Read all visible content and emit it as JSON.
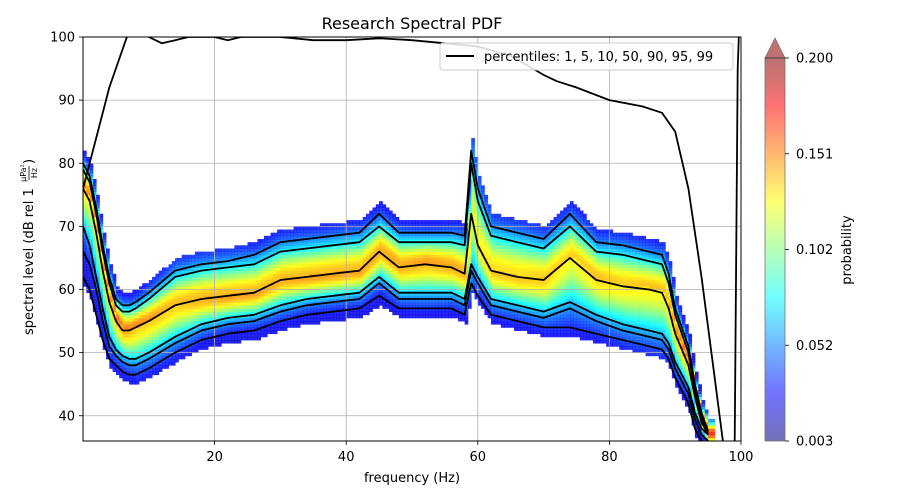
{
  "chart_data": {
    "type": "heatmap",
    "title": "Research Spectral PDF",
    "xlabel": "frequency (Hz)",
    "ylabel_main": "spectral level (dB rel 1",
    "ylabel_frac_num": "μPa²",
    "ylabel_frac_den": "Hz",
    "ylabel_close": ")",
    "xlim": [
      0,
      100
    ],
    "ylim": [
      36,
      100
    ],
    "xticks": [
      20,
      40,
      60,
      80,
      100
    ],
    "yticks": [
      40,
      50,
      60,
      70,
      80,
      90,
      100
    ],
    "grid": true,
    "legend": {
      "position": "top-right",
      "label": "percentiles: 1, 5, 10, 50, 90, 95, 99"
    },
    "colorbar": {
      "label": "probability",
      "range": [
        0.003,
        0.2
      ],
      "ticks": [
        "0.003",
        "0.052",
        "0.102",
        "0.151",
        "0.200"
      ],
      "extend": "max",
      "colormap": [
        "#00007f",
        "#0000ff",
        "#007fff",
        "#00ffff",
        "#7fff7f",
        "#ffff00",
        "#ff7f00",
        "#ff0000",
        "#7f0000"
      ]
    },
    "series": [
      {
        "percentile": 1,
        "x": [
          0,
          1,
          2,
          3,
          4,
          5,
          6,
          7,
          8,
          10,
          14,
          18,
          22,
          26,
          30,
          34,
          38,
          42,
          45,
          48,
          52,
          56,
          58,
          59,
          60,
          62,
          66,
          70,
          74,
          78,
          82,
          86,
          88,
          89,
          90,
          92,
          93,
          94,
          95
        ],
        "y": [
          62,
          60,
          56,
          52,
          49,
          48,
          47,
          46.5,
          46.5,
          47.5,
          50,
          52,
          53,
          53.5,
          55,
          56,
          56.5,
          57,
          59,
          57,
          57,
          57,
          56,
          61,
          59,
          56,
          55,
          54,
          54,
          53,
          52,
          51,
          50.5,
          49,
          46,
          42,
          38,
          36,
          35
        ]
      },
      {
        "percentile": 5,
        "x": [
          0,
          1,
          2,
          3,
          4,
          5,
          6,
          7,
          8,
          10,
          14,
          18,
          22,
          26,
          30,
          34,
          38,
          42,
          45,
          48,
          52,
          56,
          58,
          59,
          60,
          62,
          66,
          70,
          74,
          78,
          82,
          86,
          88,
          89,
          90,
          92,
          93,
          94,
          95
        ],
        "y": [
          66,
          64,
          60,
          55,
          51,
          49.5,
          48.5,
          48,
          48,
          49,
          51.5,
          53.5,
          54.5,
          55,
          56.5,
          57.5,
          58,
          58.5,
          61,
          58.5,
          58.5,
          58.5,
          57.5,
          63,
          61,
          57.5,
          56.5,
          55.5,
          57,
          55,
          53.5,
          52.5,
          52,
          50.5,
          47.5,
          43.5,
          39.5,
          37,
          36
        ]
      },
      {
        "percentile": 10,
        "x": [
          0,
          1,
          2,
          3,
          4,
          5,
          6,
          7,
          8,
          10,
          14,
          18,
          22,
          26,
          30,
          34,
          38,
          42,
          45,
          48,
          52,
          56,
          58,
          59,
          60,
          62,
          66,
          70,
          74,
          78,
          82,
          86,
          88,
          89,
          90,
          92,
          93,
          94,
          95
        ],
        "y": [
          70,
          67,
          62,
          57,
          52.5,
          50.5,
          49.5,
          49,
          49,
          50,
          52.5,
          54.5,
          55.5,
          56,
          57.5,
          58.5,
          59,
          59.5,
          62,
          59.5,
          59.5,
          59.5,
          58.5,
          64,
          62,
          58.5,
          57.5,
          56.5,
          58,
          56,
          54.5,
          53.5,
          53,
          51.5,
          48.5,
          44.5,
          40.5,
          38,
          37
        ]
      },
      {
        "percentile": 50,
        "x": [
          0,
          1,
          2,
          3,
          4,
          5,
          6,
          7,
          8,
          10,
          14,
          18,
          22,
          26,
          30,
          34,
          38,
          42,
          45,
          48,
          52,
          56,
          58,
          59,
          60,
          62,
          66,
          70,
          74,
          78,
          82,
          86,
          88,
          89,
          90,
          92,
          93,
          94,
          95
        ],
        "y": [
          76,
          74,
          69,
          63,
          58,
          55,
          53.5,
          53.5,
          54,
          55,
          57.5,
          58.5,
          59,
          59.5,
          61.5,
          62,
          62.5,
          63,
          66,
          63.5,
          64,
          63.5,
          62.5,
          72,
          67,
          63,
          62,
          61.5,
          65,
          61.5,
          60.5,
          60,
          59.5,
          57,
          53,
          48,
          43,
          39,
          37
        ]
      },
      {
        "percentile": 90,
        "x": [
          0,
          1,
          2,
          3,
          4,
          5,
          6,
          7,
          8,
          10,
          14,
          18,
          22,
          26,
          30,
          34,
          38,
          42,
          45,
          48,
          52,
          56,
          58,
          59,
          60,
          62,
          66,
          70,
          74,
          78,
          82,
          86,
          88,
          89,
          90,
          92,
          93,
          94,
          95
        ],
        "y": [
          79,
          77,
          72,
          66,
          61,
          57.5,
          56.5,
          56.5,
          57,
          58.5,
          62,
          63,
          63.5,
          64,
          66,
          66.5,
          67,
          67.5,
          70,
          67.5,
          67.5,
          67.5,
          67,
          80,
          74,
          68.5,
          67.5,
          66.5,
          70,
          66,
          65.5,
          64.5,
          64,
          61,
          56,
          50,
          44,
          40,
          37
        ]
      },
      {
        "percentile": 95,
        "x": [
          0,
          1,
          2,
          3,
          4,
          5,
          6,
          7,
          8,
          10,
          14,
          18,
          22,
          26,
          30,
          34,
          38,
          42,
          45,
          48,
          52,
          56,
          58,
          59,
          60,
          62,
          66,
          70,
          74,
          78,
          82,
          86,
          88,
          89,
          90,
          92,
          93,
          94,
          95
        ],
        "y": [
          80,
          78,
          73,
          67,
          62,
          58.5,
          57.5,
          57.5,
          58,
          59.5,
          63,
          64,
          64.5,
          65.5,
          67.5,
          68,
          68.5,
          69,
          72,
          69,
          69,
          69,
          68.5,
          82,
          76,
          70,
          69,
          68,
          72,
          67.5,
          67,
          66,
          65.5,
          62.5,
          57,
          51,
          45,
          40.5,
          37.5
        ]
      },
      {
        "percentile": 99,
        "x": [
          0,
          2,
          4,
          6,
          8,
          10,
          12,
          14,
          16,
          18,
          20,
          22,
          24,
          26,
          28,
          30,
          35,
          40,
          45,
          50,
          55,
          60,
          65,
          70,
          72,
          75,
          80,
          85,
          88,
          90,
          92,
          94,
          96,
          98,
          99,
          99.5,
          100
        ],
        "y": [
          76,
          84,
          92,
          98,
          104,
          100,
          99,
          99.5,
          100,
          100,
          100,
          99.5,
          100,
          100,
          100,
          100,
          99.5,
          99.5,
          99.8,
          99.5,
          99,
          98.5,
          97,
          94,
          93,
          92,
          90,
          89,
          88,
          85,
          76,
          62,
          46,
          30,
          30,
          95,
          110
        ]
      }
    ]
  }
}
